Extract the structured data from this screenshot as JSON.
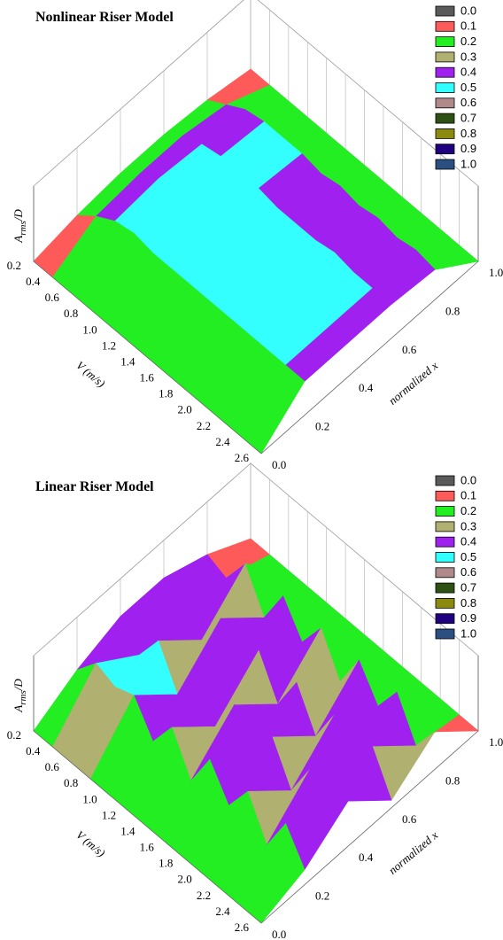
{
  "chart_data": [
    {
      "type": "surface",
      "title": "Nonlinear Riser Model",
      "x_label": "normalized x",
      "y_label": "V (m/s)",
      "z_label": {
        "base": "A",
        "sub": "rms",
        "tail": "/D"
      },
      "x": [
        {
          "value": 0,
          "label": "0.0"
        },
        0.2,
        0.4,
        0.6,
        0.8,
        {
          "value": 1,
          "label": "1.0"
        }
      ],
      "y": [
        0.2,
        0.4,
        0.6,
        0.8,
        {
          "value": 1,
          "label": "1.0"
        },
        1.2,
        1.4,
        1.6,
        1.8,
        {
          "value": 2,
          "label": "2.0"
        },
        2.2,
        2.4,
        2.6
      ],
      "xlim": [
        0,
        1
      ],
      "ylim": [
        0.2,
        2.6
      ],
      "zlim": [
        0,
        1
      ],
      "xticks": [
        {
          "value": 0,
          "label": "0.0"
        },
        0.2,
        0.4,
        0.6,
        0.8,
        {
          "value": 1,
          "label": "1.0"
        }
      ],
      "yticks": [
        0.2,
        0.4,
        0.6,
        0.8,
        {
          "value": 1,
          "label": "1.0"
        },
        1.2,
        1.4,
        1.6,
        1.8,
        {
          "value": 2,
          "label": "2.0"
        },
        2.2,
        2.4,
        2.6
      ],
      "legend": [
        {
          "value": 0,
          "label": "0.0",
          "color": "#5a5a5a"
        },
        {
          "value": 0.1,
          "label": "0.1",
          "color": "#ff5a5a"
        },
        {
          "value": 0.2,
          "label": "0.2",
          "color": "#22ee22"
        },
        {
          "value": 0.3,
          "label": "0.3",
          "color": "#b0b070"
        },
        {
          "value": 0.4,
          "label": "0.4",
          "color": "#a020f0"
        },
        {
          "value": 0.5,
          "label": "0.5",
          "color": "#33ffff"
        },
        {
          "value": 0.6,
          "label": "0.6",
          "color": "#b08a8a"
        },
        {
          "value": 0.7,
          "label": "0.7",
          "color": "#2e5013"
        },
        {
          "value": 0.8,
          "label": "0.8",
          "color": "#8a8a10"
        },
        {
          "value": 0.9,
          "label": "0.9",
          "color": "#200080"
        },
        {
          "value": 1,
          "label": "1.0",
          "color": "#2a4f80"
        }
      ],
      "z": [
        [
          0,
          0.1,
          0.15,
          0.15,
          0.1,
          0
        ],
        [
          0,
          0.3,
          0.35,
          0.35,
          0.25,
          0
        ],
        [
          0,
          0.45,
          0.5,
          0.45,
          0.4,
          0
        ],
        [
          0,
          0.5,
          0.45,
          0.5,
          0.45,
          0
        ],
        [
          0,
          0.45,
          0.5,
          0.45,
          0.45,
          0
        ],
        [
          0,
          0.45,
          0.45,
          0.5,
          0.45,
          0
        ],
        [
          0,
          0.45,
          0.5,
          0.45,
          0.4,
          0
        ],
        [
          0,
          0.45,
          0.45,
          0.45,
          0.45,
          0
        ],
        [
          0,
          0.45,
          0.5,
          0.45,
          0.4,
          0
        ],
        [
          0,
          0.45,
          0.45,
          0.5,
          0.45,
          0
        ],
        [
          0,
          0.45,
          0.5,
          0.45,
          0.4,
          0
        ],
        [
          0,
          0.45,
          0.45,
          0.45,
          0.45,
          0
        ],
        [
          0,
          0.45,
          0.45,
          0.45,
          0.4,
          0
        ]
      ]
    },
    {
      "type": "surface",
      "title": "Linear Riser Model",
      "x_label": "normalized x",
      "y_label": "V (m/s)",
      "z_label": {
        "base": "A",
        "sub": "rms",
        "tail": "/D"
      },
      "x": [
        {
          "value": 0,
          "label": "0.0"
        },
        0.2,
        0.4,
        0.6,
        0.8,
        {
          "value": 1,
          "label": "1.0"
        }
      ],
      "y": [
        0.2,
        0.4,
        0.6,
        0.8,
        {
          "value": 1,
          "label": "1.0"
        },
        1.2,
        1.4,
        1.6,
        1.8,
        {
          "value": 2,
          "label": "2.0"
        },
        2.2,
        2.4,
        2.6
      ],
      "xlim": [
        0,
        1
      ],
      "ylim": [
        0.2,
        2.6
      ],
      "zlim": [
        0,
        1
      ],
      "xticks": [
        {
          "value": 0,
          "label": "0.0"
        },
        0.2,
        0.4,
        0.6,
        0.8,
        {
          "value": 1,
          "label": "1.0"
        }
      ],
      "yticks": [
        0.2,
        0.4,
        0.6,
        0.8,
        {
          "value": 1,
          "label": "1.0"
        },
        1.2,
        1.4,
        1.6,
        1.8,
        {
          "value": 2,
          "label": "2.0"
        },
        2.2,
        2.4,
        2.6
      ],
      "legend": [
        {
          "value": 0,
          "label": "0.0",
          "color": "#5a5a5a"
        },
        {
          "value": 0.1,
          "label": "0.1",
          "color": "#ff5a5a"
        },
        {
          "value": 0.2,
          "label": "0.2",
          "color": "#22ee22"
        },
        {
          "value": 0.3,
          "label": "0.3",
          "color": "#b0b070"
        },
        {
          "value": 0.4,
          "label": "0.4",
          "color": "#a020f0"
        },
        {
          "value": 0.5,
          "label": "0.5",
          "color": "#33ffff"
        },
        {
          "value": 0.6,
          "label": "0.6",
          "color": "#b08a8a"
        },
        {
          "value": 0.7,
          "label": "0.7",
          "color": "#2e5013"
        },
        {
          "value": 0.8,
          "label": "0.8",
          "color": "#8a8a10"
        },
        {
          "value": 0.9,
          "label": "0.9",
          "color": "#200080"
        },
        {
          "value": 1,
          "label": "1.0",
          "color": "#2a4f80"
        }
      ],
      "z": [
        [
          0,
          0.3,
          0.5,
          0.5,
          0.3,
          0
        ],
        [
          0,
          0.6,
          0.2,
          0.6,
          0.2,
          0
        ],
        [
          0,
          0.5,
          0.6,
          0.1,
          0.6,
          0
        ],
        [
          0,
          0.6,
          0.1,
          0.6,
          0.1,
          0
        ],
        [
          0,
          0.2,
          0.6,
          0.2,
          0.6,
          0
        ],
        [
          0,
          0.6,
          0.1,
          0.6,
          0.2,
          0
        ],
        [
          0,
          0.1,
          0.6,
          0.1,
          0.6,
          0
        ],
        [
          0,
          0.6,
          0.2,
          0.6,
          0.1,
          0
        ],
        [
          0,
          0.2,
          0.6,
          0.1,
          0.6,
          0
        ],
        [
          0,
          0.6,
          0.1,
          0.6,
          0.2,
          0
        ],
        [
          0,
          0.1,
          0.6,
          0.2,
          0.6,
          0
        ],
        [
          0,
          0.6,
          0.2,
          0.6,
          0.1,
          0
        ],
        [
          0,
          0.2,
          0.6,
          0.1,
          0.5,
          0
        ]
      ]
    }
  ]
}
